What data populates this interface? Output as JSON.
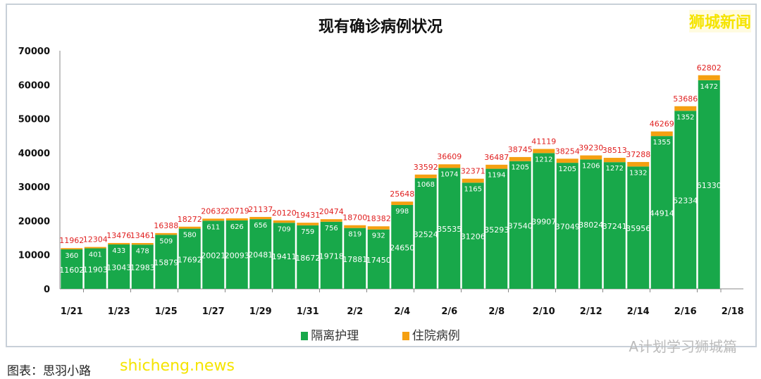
{
  "chart_data": {
    "type": "bar",
    "stacked": true,
    "title": "现有确诊病例状况",
    "categories": [
      "1/21",
      "1/22",
      "1/23",
      "1/24",
      "1/25",
      "1/26",
      "1/27",
      "1/28",
      "1/29",
      "1/30",
      "1/31",
      "2/1",
      "2/2",
      "2/3",
      "2/4",
      "2/5",
      "2/6",
      "2/7",
      "2/8",
      "2/9",
      "2/10",
      "2/11",
      "2/12",
      "2/13",
      "2/14",
      "2/15",
      "2/16",
      "2/17"
    ],
    "xtick_labels": [
      "1/21",
      "1/23",
      "1/25",
      "1/27",
      "1/29",
      "1/31",
      "2/2",
      "2/4",
      "2/6",
      "2/8",
      "2/10",
      "2/12",
      "2/14",
      "2/16",
      "2/18"
    ],
    "series": [
      {
        "name": "隔离护理",
        "color": "#18a84a",
        "values": [
          11602,
          11903,
          13043,
          12983,
          15879,
          17692,
          20021,
          20093,
          20481,
          19411,
          18672,
          19718,
          17881,
          17450,
          24650,
          32524,
          35535,
          31206,
          35293,
          37540,
          39907,
          37049,
          38024,
          37241,
          35956,
          44914,
          52334,
          61330
        ]
      },
      {
        "name": "住院病例",
        "color": "#f5a011",
        "values": [
          360,
          401,
          433,
          478,
          509,
          580,
          611,
          626,
          656,
          709,
          759,
          756,
          819,
          932,
          998,
          1068,
          1074,
          1165,
          1194,
          1205,
          1212,
          1205,
          1206,
          1272,
          1332,
          1355,
          1352,
          1472
        ]
      }
    ],
    "totals": [
      11962,
      12304,
      13476,
      13461,
      16388,
      18272,
      20632,
      20719,
      21137,
      20120,
      19431,
      20474,
      18700,
      18382,
      25648,
      33592,
      36609,
      32371,
      36487,
      38745,
      41119,
      38254,
      39230,
      38513,
      37288,
      46269,
      53686,
      62802
    ],
    "total_label_color": "#e02020",
    "ylim": [
      0,
      70000
    ],
    "yticks": [
      0,
      10000,
      20000,
      30000,
      40000,
      50000,
      60000,
      70000
    ],
    "legend": "bottom",
    "grid": false
  },
  "logo": "狮城新闻",
  "watermark": "A计划学习狮城篇",
  "site": "shicheng.news",
  "caption": "图表：思羽小路"
}
